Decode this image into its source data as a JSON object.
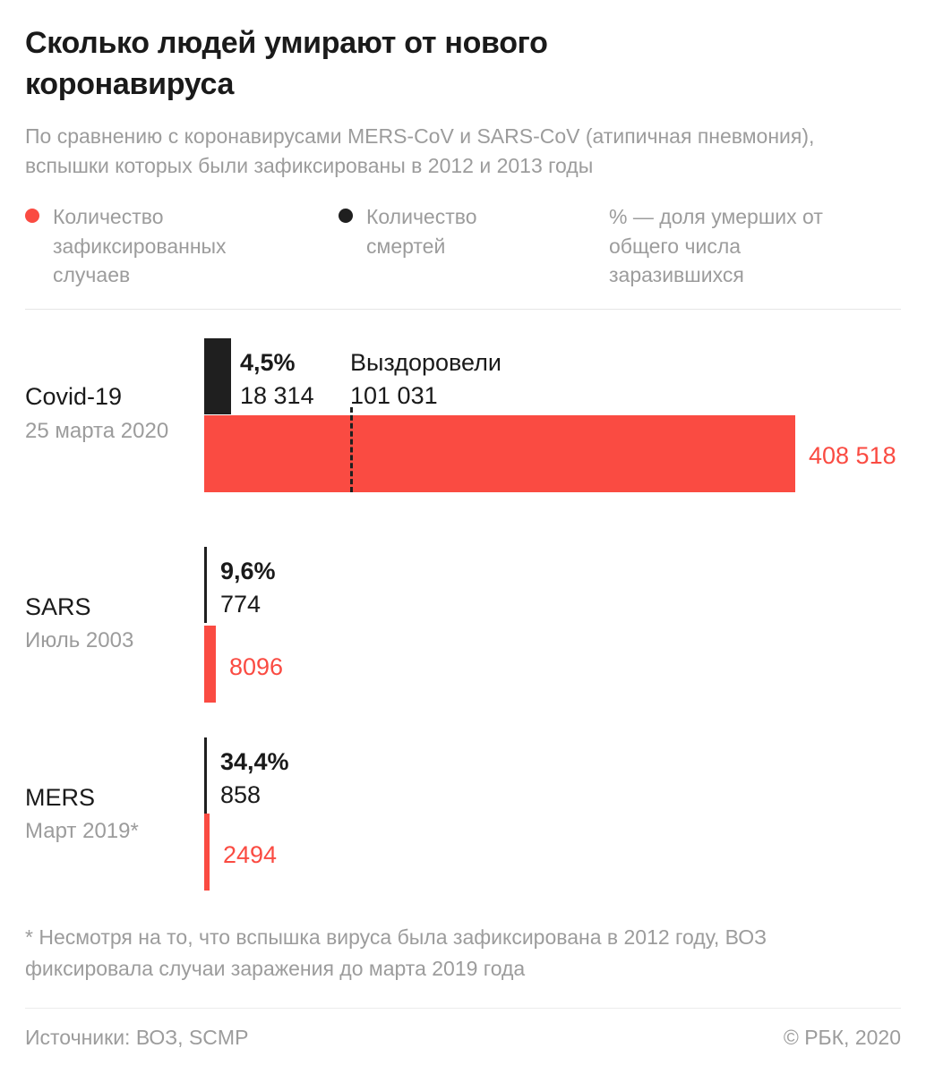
{
  "header": {
    "title": "Сколько людей умирают от нового коронавируса",
    "subtitle": "По сравнению с коронавирусами MERS-CoV и SARS-CoV (атипичная пневмония), вспышки которых были зафиксированы в 2012 и 2013 годы"
  },
  "legend": {
    "cases_label": "Количество зафиксированных случаев",
    "deaths_label": "Количество смертей",
    "percent_note": "% — доля умерших от общего числа заразившихся"
  },
  "colors": {
    "cases_red": "#fa4b42",
    "deaths_black": "#1f1f1f",
    "muted_gray": "#9c9c9c"
  },
  "chart_data": {
    "type": "bar",
    "orientation": "horizontal",
    "legend_position": "top",
    "series_labels": [
      "Количество зафиксированных случаев",
      "Количество смертей"
    ],
    "rows": [
      {
        "name": "Covid-19",
        "date": "25 марта 2020",
        "cases_value": 408518,
        "cases_label": "408 518",
        "deaths_value": 18314,
        "deaths_label": "18 314",
        "death_rate_label": "4,5%",
        "recovered_title": "Выздоровели",
        "recovered_value": 101031,
        "recovered_label": "101 031"
      },
      {
        "name": "SARS",
        "date": "Июль 2003",
        "cases_value": 8096,
        "cases_label": "8096",
        "deaths_value": 774,
        "deaths_label": "774",
        "death_rate_label": "9,6%"
      },
      {
        "name": "MERS",
        "date": "Март 2019*",
        "cases_value": 2494,
        "cases_label": "2494",
        "deaths_value": 858,
        "deaths_label": "858",
        "death_rate_label": "34,4%"
      }
    ]
  },
  "footnote": "* Несмотря на то, что вспышка вируса была зафиксирована в 2012 году, ВОЗ фиксировала случаи заражения до марта 2019 года",
  "footer": {
    "sources": "Источники: ВОЗ, SCMP",
    "copyright": "© РБК, 2020"
  }
}
